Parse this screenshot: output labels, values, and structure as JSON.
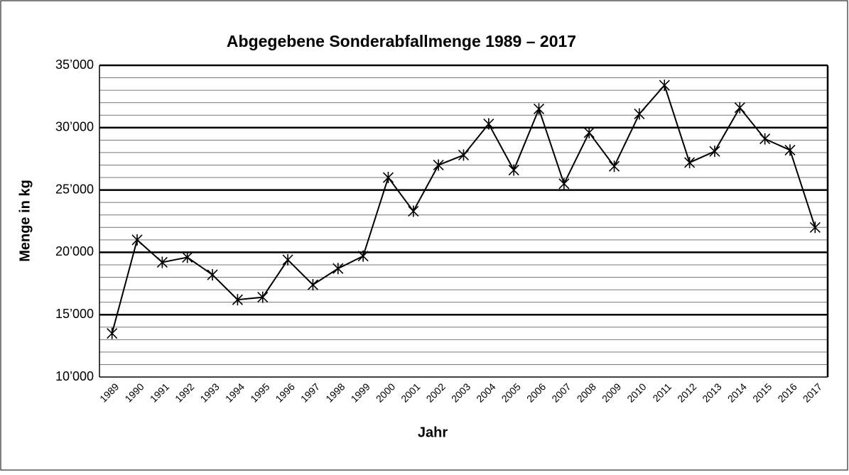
{
  "chart_data": {
    "type": "line",
    "title": "Abgegebene Sonderabfallmenge 1989 – 2017",
    "x_label": "Jahr",
    "y_label": "Menge in kg",
    "categories": [
      "1989",
      "1990",
      "1991",
      "1992",
      "1993",
      "1994",
      "1995",
      "1996",
      "1997",
      "1998",
      "1999",
      "2000",
      "2001",
      "2002",
      "2003",
      "2004",
      "2005",
      "2006",
      "2007",
      "2008",
      "2009",
      "2010",
      "2011",
      "2012",
      "2013",
      "2014",
      "2015",
      "2016",
      "2017"
    ],
    "values": [
      13500,
      21000,
      19200,
      19600,
      18200,
      16200,
      16400,
      19400,
      17400,
      18700,
      19700,
      26000,
      23300,
      27000,
      27800,
      30300,
      26600,
      31500,
      25500,
      29600,
      26900,
      31100,
      33400,
      27200,
      28100,
      31600,
      29100,
      28200,
      22000
    ],
    "color": "#000000",
    "ylim": [
      10000,
      35000
    ],
    "yticks": [
      {
        "value": 10000,
        "label": "10’000"
      },
      {
        "value": 15000,
        "label": "15’000"
      },
      {
        "value": 20000,
        "label": "20’000"
      },
      {
        "value": 25000,
        "label": "25’000"
      },
      {
        "value": 30000,
        "label": "30’000"
      },
      {
        "value": 35000,
        "label": "35’000"
      }
    ],
    "minor_yticks": [
      11000,
      12000,
      13000,
      14000,
      16000,
      17000,
      18000,
      19000,
      21000,
      22000,
      23000,
      24000,
      26000,
      27000,
      28000,
      29000,
      31000,
      32000,
      33000,
      34000
    ],
    "grid": true,
    "marker": "star"
  }
}
